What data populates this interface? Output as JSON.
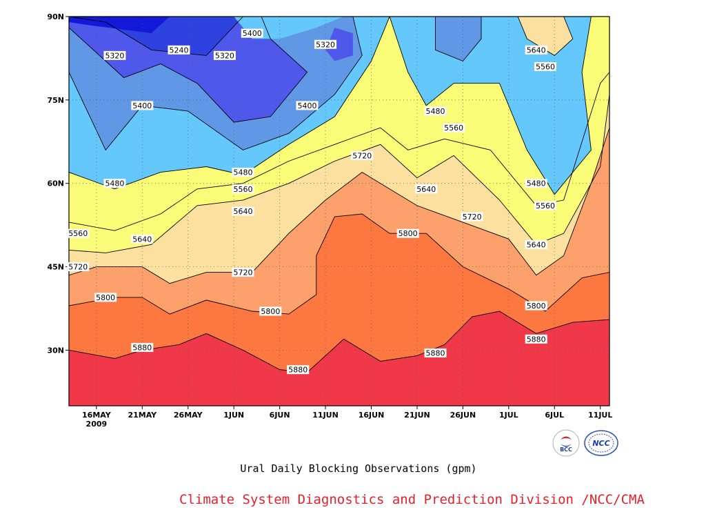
{
  "chart_data": {
    "type": "contour",
    "title": "Ural Daily Blocking Observations (gpm)",
    "xlabel": "",
    "ylabel": "",
    "x_tick_labels": [
      "16MAY",
      "21MAY",
      "26MAY",
      "1JUN",
      "6JUN",
      "11JUN",
      "16JUN",
      "21JUN",
      "26JUN",
      "1JUL",
      "6JUL",
      "11JUL"
    ],
    "x_year_label": "2009",
    "y_tick_labels": [
      "30N",
      "45N",
      "60N",
      "75N",
      "90N"
    ],
    "y_ticks": [
      30,
      45,
      60,
      75,
      90
    ],
    "ylim": [
      20,
      90
    ],
    "xlim": [
      "2009-05-13",
      "2009-07-11"
    ],
    "contour_levels": [
      5240,
      5320,
      5400,
      5480,
      5560,
      5640,
      5720,
      5800,
      5880
    ],
    "contour_fill_colors": {
      "5160": "#1418d8",
      "5240": "#2e42e0",
      "5320": "#5058ec",
      "5400": "#6098e6",
      "5480": "#64c8fc",
      "5560": "#fafc78",
      "5640": "#fce0a0",
      "5720": "#fca06c",
      "5800": "#fc7840",
      "5880": "#f47078",
      "5960": "#f03848"
    },
    "isolines": [
      {
        "level": 5880,
        "points": [
          [
            "2009-05-13",
            30
          ],
          [
            "2009-05-18",
            28.5
          ],
          [
            "2009-05-21",
            30
          ],
          [
            "2009-05-25",
            31
          ],
          [
            "2009-05-28",
            33
          ],
          [
            "2009-06-01",
            30
          ],
          [
            "2009-06-05",
            26.5
          ],
          [
            "2009-06-08",
            26
          ],
          [
            "2009-06-12",
            32
          ],
          [
            "2009-06-16",
            28
          ],
          [
            "2009-06-20",
            29
          ],
          [
            "2009-06-23",
            31
          ],
          [
            "2009-06-26",
            36
          ],
          [
            "2009-06-29",
            37
          ],
          [
            "2009-07-03",
            33
          ],
          [
            "2009-07-07",
            35
          ],
          [
            "2009-07-11",
            35.5
          ]
        ]
      },
      {
        "level": 5800,
        "points": [
          [
            "2009-05-13",
            38
          ],
          [
            "2009-05-18",
            39.5
          ],
          [
            "2009-05-21",
            39.5
          ],
          [
            "2009-05-24",
            36.5
          ],
          [
            "2009-05-28",
            39
          ],
          [
            "2009-06-02",
            37
          ],
          [
            "2009-06-06",
            36.5
          ],
          [
            "2009-06-09",
            40
          ],
          [
            "2009-06-09",
            47
          ],
          [
            "2009-06-11",
            54
          ],
          [
            "2009-06-14",
            54.5
          ],
          [
            "2009-06-17",
            51
          ],
          [
            "2009-06-21",
            51
          ],
          [
            "2009-06-25",
            45
          ],
          [
            "2009-06-30",
            41
          ],
          [
            "2009-07-04",
            37
          ],
          [
            "2009-07-08",
            43
          ],
          [
            "2009-07-11",
            44
          ]
        ]
      },
      {
        "level": 5720,
        "points": [
          [
            "2009-05-13",
            43.5
          ],
          [
            "2009-05-16",
            45
          ],
          [
            "2009-05-21",
            45
          ],
          [
            "2009-05-24",
            42
          ],
          [
            "2009-05-28",
            44
          ],
          [
            "2009-06-02",
            44
          ],
          [
            "2009-06-06",
            51
          ],
          [
            "2009-06-10",
            57
          ],
          [
            "2009-06-14",
            62
          ],
          [
            "2009-06-16",
            60
          ],
          [
            "2009-06-20",
            56
          ],
          [
            "2009-06-25",
            53
          ],
          [
            "2009-06-30",
            50
          ],
          [
            "2009-07-03",
            43.5
          ],
          [
            "2009-07-06",
            47
          ],
          [
            "2009-07-09",
            60
          ],
          [
            "2009-07-11",
            70
          ]
        ]
      },
      {
        "level": 5640,
        "points": [
          [
            "2009-05-13",
            48
          ],
          [
            "2009-05-17",
            47.5
          ],
          [
            "2009-05-22",
            49
          ],
          [
            "2009-05-27",
            56
          ],
          [
            "2009-06-01",
            57
          ],
          [
            "2009-06-06",
            60
          ],
          [
            "2009-06-11",
            64
          ],
          [
            "2009-06-16",
            67
          ],
          [
            "2009-06-20",
            61
          ],
          [
            "2009-06-24",
            65
          ],
          [
            "2009-06-29",
            57
          ],
          [
            "2009-07-03",
            49
          ],
          [
            "2009-07-06",
            51
          ],
          [
            "2009-07-10",
            63
          ],
          [
            "2009-07-11",
            76
          ]
        ]
      },
      {
        "level": 5560,
        "points": [
          [
            "2009-05-13",
            53
          ],
          [
            "2009-05-18",
            51.5
          ],
          [
            "2009-05-23",
            54.5
          ],
          [
            "2009-05-27",
            59
          ],
          [
            "2009-06-01",
            60
          ],
          [
            "2009-06-06",
            64
          ],
          [
            "2009-06-11",
            67
          ],
          [
            "2009-06-16",
            70
          ],
          [
            "2009-06-19",
            66
          ],
          [
            "2009-06-23",
            68
          ],
          [
            "2009-06-28",
            66
          ],
          [
            "2009-07-03",
            56
          ],
          [
            "2009-07-06",
            57
          ],
          [
            "2009-07-10",
            78
          ],
          [
            "2009-07-11",
            80
          ]
        ]
      },
      {
        "level": 5480,
        "points": [
          [
            "2009-05-13",
            62
          ],
          [
            "2009-05-18",
            59
          ],
          [
            "2009-05-23",
            62
          ],
          [
            "2009-05-28",
            63
          ],
          [
            "2009-06-01",
            61.5
          ],
          [
            "2009-06-06",
            67
          ],
          [
            "2009-06-11",
            72
          ],
          [
            "2009-06-15",
            82
          ],
          [
            "2009-06-17",
            90
          ]
        ]
      },
      {
        "level": 5400,
        "points": [
          [
            "2009-05-13",
            80
          ],
          [
            "2009-05-17",
            66
          ],
          [
            "2009-05-21",
            74
          ],
          [
            "2009-05-26",
            73
          ],
          [
            "2009-06-01",
            66
          ],
          [
            "2009-06-06",
            69
          ],
          [
            "2009-06-11",
            76
          ],
          [
            "2009-06-14",
            83
          ],
          [
            "2009-06-13",
            90
          ]
        ]
      },
      {
        "level": 5320,
        "points": [
          [
            "2009-05-13",
            88
          ],
          [
            "2009-05-19",
            79
          ],
          [
            "2009-05-23",
            81.5
          ],
          [
            "2009-05-27",
            78
          ],
          [
            "2009-05-31",
            71
          ],
          [
            "2009-06-04",
            72
          ],
          [
            "2009-06-08",
            80
          ],
          [
            "2009-06-04",
            86
          ],
          [
            "2009-06-03",
            90
          ]
        ]
      },
      {
        "level": 5240,
        "points": [
          [
            "2009-05-13",
            90
          ],
          [
            "2009-05-17",
            89
          ],
          [
            "2009-05-22",
            84
          ],
          [
            "2009-05-28",
            83
          ],
          [
            "2009-06-01",
            90
          ]
        ]
      }
    ],
    "contour_labels": [
      {
        "text": "5320",
        "x": "2009-05-18",
        "y": 83
      },
      {
        "text": "5240",
        "x": "2009-05-25",
        "y": 84
      },
      {
        "text": "5320",
        "x": "2009-05-30",
        "y": 83
      },
      {
        "text": "5400",
        "x": "2009-06-02",
        "y": 87
      },
      {
        "text": "5320",
        "x": "2009-06-10",
        "y": 85
      },
      {
        "text": "5400",
        "x": "2009-05-21",
        "y": 74
      },
      {
        "text": "5400",
        "x": "2009-06-08",
        "y": 74
      },
      {
        "text": "5480",
        "x": "2009-05-18",
        "y": 60
      },
      {
        "text": "5480",
        "x": "2009-06-01",
        "y": 62
      },
      {
        "text": "5560",
        "x": "2009-06-01",
        "y": 59
      },
      {
        "text": "5640",
        "x": "2009-06-01",
        "y": 55
      },
      {
        "text": "5720",
        "x": "2009-06-14",
        "y": 65
      },
      {
        "text": "5480",
        "x": "2009-06-22",
        "y": 73
      },
      {
        "text": "5560",
        "x": "2009-06-24",
        "y": 70
      },
      {
        "text": "5640",
        "x": "2009-06-21",
        "y": 59
      },
      {
        "text": "5720",
        "x": "2009-06-26",
        "y": 54
      },
      {
        "text": "5800",
        "x": "2009-06-19",
        "y": 51
      },
      {
        "text": "5560",
        "x": "2009-05-14",
        "y": 51
      },
      {
        "text": "5640",
        "x": "2009-05-21",
        "y": 50
      },
      {
        "text": "5720",
        "x": "2009-05-14",
        "y": 45
      },
      {
        "text": "5720",
        "x": "2009-06-01",
        "y": 44
      },
      {
        "text": "5800",
        "x": "2009-05-17",
        "y": 39.5
      },
      {
        "text": "5800",
        "x": "2009-06-04",
        "y": 37
      },
      {
        "text": "5880",
        "x": "2009-05-21",
        "y": 30.5
      },
      {
        "text": "5880",
        "x": "2009-06-07",
        "y": 26.5
      },
      {
        "text": "5880",
        "x": "2009-06-22",
        "y": 29.5
      },
      {
        "text": "5640",
        "x": "2009-07-03",
        "y": 84
      },
      {
        "text": "5560",
        "x": "2009-07-04",
        "y": 81
      },
      {
        "text": "5480",
        "x": "2009-07-03",
        "y": 60
      },
      {
        "text": "5560",
        "x": "2009-07-04",
        "y": 56
      },
      {
        "text": "5640",
        "x": "2009-07-03",
        "y": 49
      },
      {
        "text": "5800",
        "x": "2009-07-03",
        "y": 38
      },
      {
        "text": "5880",
        "x": "2009-07-03",
        "y": 32
      }
    ],
    "grid": true
  },
  "caption": "Ural Daily Blocking Observations (gpm)",
  "credit": "Climate System Diagnostics and Prediction Division /NCC/CMA",
  "logos": {
    "left": {
      "icon": "bcc-logo",
      "text": "BCC"
    },
    "right": {
      "icon": "ncc-logo",
      "text": "NCC"
    }
  }
}
